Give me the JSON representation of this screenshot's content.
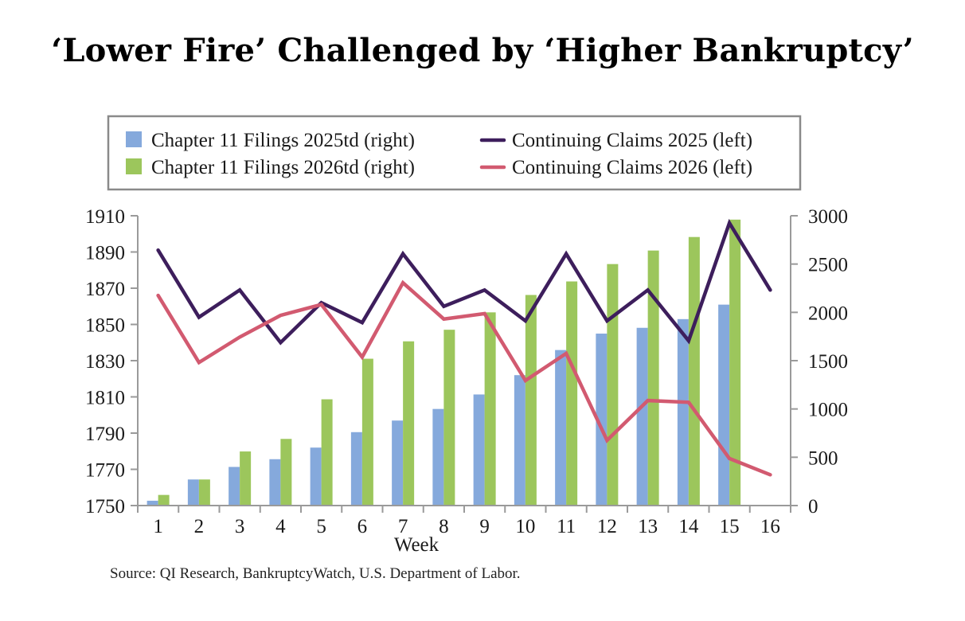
{
  "title": "‘Lower Fire’ Challenged by ‘Higher Bankruptcy’",
  "source": "Source: QI Research, BankruptcyWatch, U.S. Department of Labor.",
  "colors": {
    "bar2025": "#85a9dc",
    "bar2026": "#9cc65c",
    "line2025": "#3d1e5c",
    "line2026": "#d25a70",
    "axis": "#9a9a9a"
  },
  "chart_data": {
    "type": "bar",
    "xlabel": "Week",
    "categories": [
      "1",
      "2",
      "3",
      "4",
      "5",
      "6",
      "7",
      "8",
      "9",
      "10",
      "11",
      "12",
      "13",
      "14",
      "15",
      "16"
    ],
    "y_left": {
      "range": [
        1750,
        1910
      ],
      "ticks": [
        "1910",
        "1890",
        "1870",
        "1850",
        "1830",
        "1810",
        "1790",
        "1770",
        "1750"
      ]
    },
    "y_right": {
      "range": [
        0,
        3000
      ],
      "ticks": [
        "3000",
        "2500",
        "2000",
        "1500",
        "1000",
        "500",
        "0"
      ]
    },
    "legend": [
      {
        "label": "Chapter 11 Filings 2025td (right)",
        "kind": "bar",
        "color": "#85a9dc"
      },
      {
        "label": "Chapter 11 Filings 2026td (right)",
        "kind": "bar",
        "color": "#9cc65c"
      },
      {
        "label": "Continuing Claims 2025 (left)",
        "kind": "line",
        "color": "#3d1e5c"
      },
      {
        "label": "Continuing Claims 2026 (left)",
        "kind": "line",
        "color": "#d25a70"
      }
    ],
    "series": [
      {
        "name": "Chapter 11 Filings 2025td (right)",
        "type": "bar",
        "axis": "right",
        "values": [
          50,
          270,
          400,
          480,
          600,
          760,
          880,
          1000,
          1150,
          1350,
          1610,
          1780,
          1840,
          1930,
          2080,
          null
        ]
      },
      {
        "name": "Chapter 11 Filings 2026td (right)",
        "type": "bar",
        "axis": "right",
        "values": [
          110,
          270,
          560,
          690,
          1100,
          1520,
          1700,
          1820,
          2000,
          2180,
          2320,
          2500,
          2640,
          2780,
          2960,
          null
        ]
      },
      {
        "name": "Continuing Claims 2025 (left)",
        "type": "line",
        "axis": "left",
        "values": [
          1891,
          1854,
          1869,
          1840,
          1862,
          1851,
          1889,
          1860,
          1869,
          1852,
          1889,
          1852,
          1869,
          1841,
          1906,
          1869
        ]
      },
      {
        "name": "Continuing Claims 2026 (left)",
        "type": "line",
        "axis": "left",
        "values": [
          1866,
          1829,
          1843,
          1855,
          1861,
          1832,
          1873,
          1853,
          1856,
          1819,
          1834,
          1786,
          1808,
          1807,
          1776,
          1767
        ]
      }
    ]
  }
}
